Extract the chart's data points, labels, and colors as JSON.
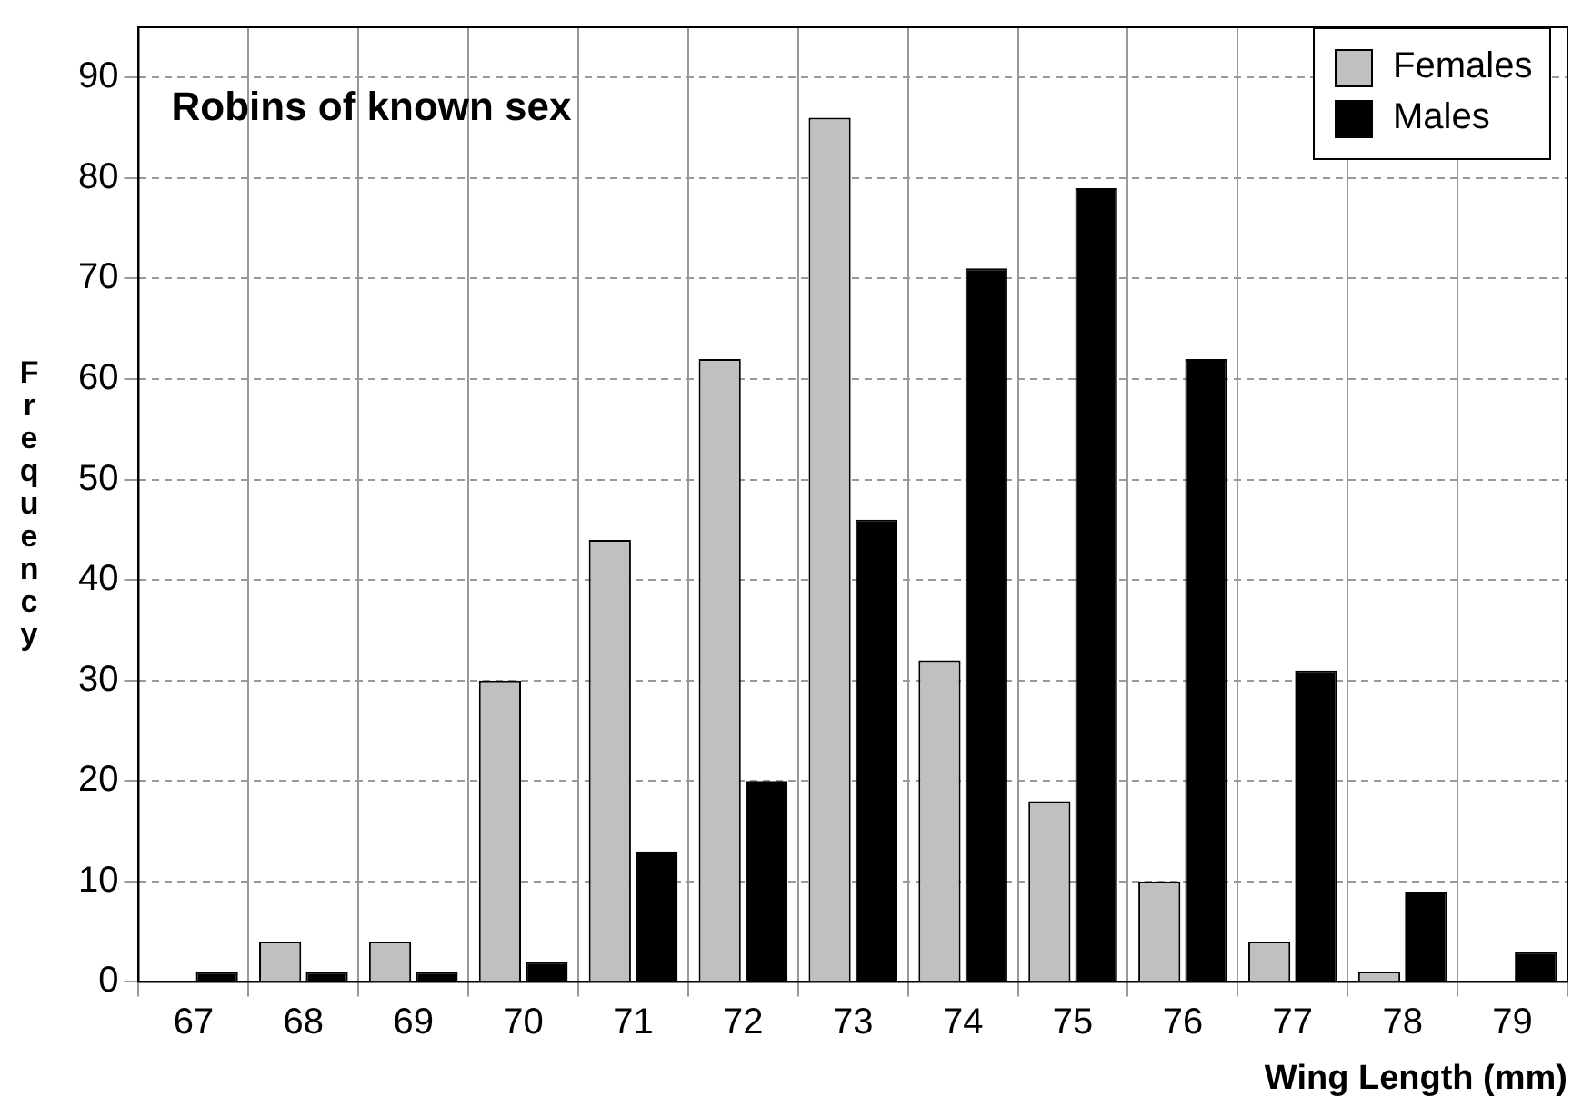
{
  "chart_data": {
    "type": "bar",
    "title": "Robins of known sex",
    "xlabel": "Wing Length (mm)",
    "ylabel": "Frequency",
    "categories": [
      "67",
      "68",
      "69",
      "70",
      "71",
      "72",
      "73",
      "74",
      "75",
      "76",
      "77",
      "78",
      "79"
    ],
    "series": [
      {
        "name": "Females",
        "color": "#c0c0c0",
        "values": [
          0,
          4,
          4,
          30,
          44,
          62,
          86,
          32,
          18,
          10,
          4,
          1,
          0
        ]
      },
      {
        "name": "Males",
        "color": "#000000",
        "values": [
          1,
          1,
          1,
          2,
          13,
          20,
          46,
          71,
          79,
          62,
          31,
          9,
          3
        ]
      }
    ],
    "ylim": [
      0,
      95
    ],
    "yticks": [
      0,
      10,
      20,
      30,
      40,
      50,
      60,
      70,
      80,
      90
    ],
    "grid": true,
    "legend": "top right"
  }
}
